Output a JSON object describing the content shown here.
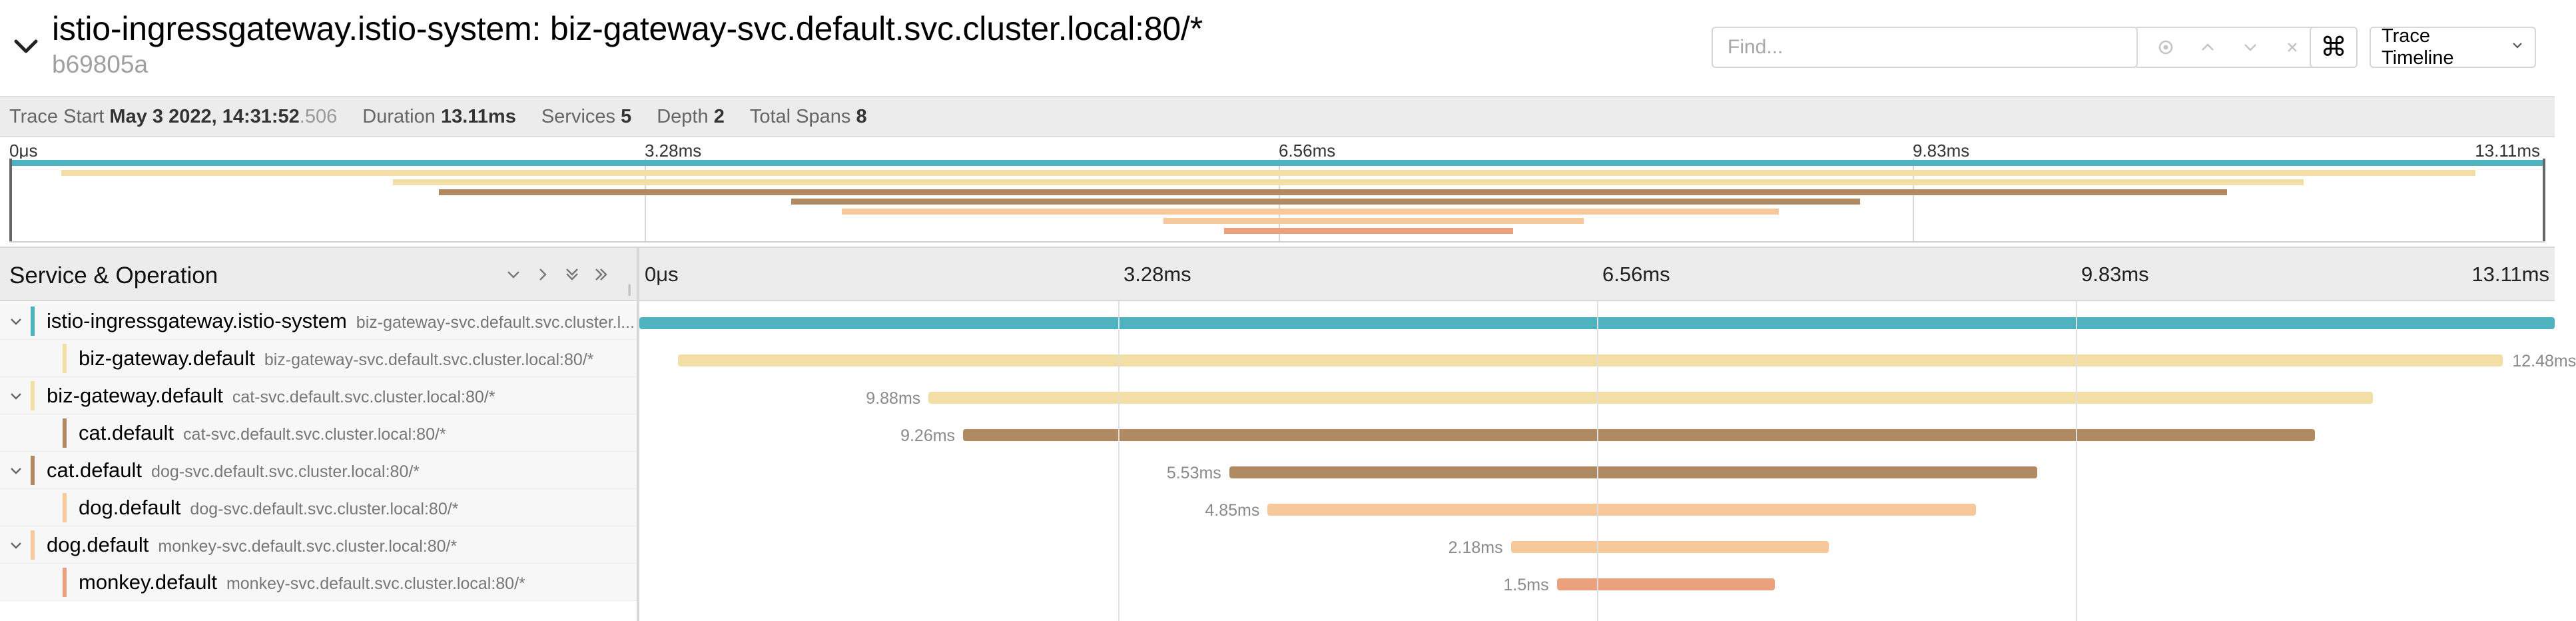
{
  "header": {
    "title": "istio-ingressgateway.istio-system: biz-gateway-svc.default.svc.cluster.local:80/*",
    "trace_id": "b69805a",
    "find_placeholder": "Find...",
    "view_label": "Trace Timeline",
    "kbd_glyph": "⌘"
  },
  "stats": {
    "trace_start_label": "Trace Start",
    "trace_start_value": "May 3 2022, 14:31:52",
    "trace_start_ms": ".506",
    "duration_label": "Duration",
    "duration_value": "13.11ms",
    "services_label": "Services",
    "services_value": "5",
    "depth_label": "Depth",
    "depth_value": "2",
    "total_spans_label": "Total Spans",
    "total_spans_value": "8"
  },
  "ticks": [
    "0μs",
    "3.28ms",
    "6.56ms",
    "9.83ms",
    "13.11ms"
  ],
  "colors": {
    "teal": "#4fb3bf",
    "light_yellow": "#f3dfa6",
    "light_orange": "#f7c99a",
    "brown": "#b08a62",
    "salmon": "#eba07e"
  },
  "timeline": {
    "column_title": "Service & Operation",
    "spans": [
      {
        "service": "istio-ingressgateway.istio-system",
        "operation": "biz-gateway-svc.default.svc.cluster.l...",
        "depth": 0,
        "toggle": true,
        "color": "#4fb3bf",
        "start": 0.0,
        "end": 1.0,
        "label": ""
      },
      {
        "service": "biz-gateway.default",
        "operation": "biz-gateway-svc.default.svc.cluster.local:80/*",
        "depth": 1,
        "toggle": false,
        "color": "#f3dfa6",
        "start": 0.02,
        "end": 0.973,
        "label": "12.48ms"
      },
      {
        "service": "biz-gateway.default",
        "operation": "cat-svc.default.svc.cluster.local:80/*",
        "depth": 0,
        "toggle": true,
        "color": "#f3dfa6",
        "start": 0.151,
        "end": 0.905,
        "label": "9.88ms"
      },
      {
        "service": "cat.default",
        "operation": "cat-svc.default.svc.cluster.local:80/*",
        "depth": 1,
        "toggle": false,
        "color": "#b08a62",
        "start": 0.169,
        "end": 0.875,
        "label": "9.26ms"
      },
      {
        "service": "cat.default",
        "operation": "dog-svc.default.svc.cluster.local:80/*",
        "depth": 0,
        "toggle": true,
        "color": "#b08a62",
        "start": 0.308,
        "end": 0.73,
        "label": "5.53ms"
      },
      {
        "service": "dog.default",
        "operation": "dog-svc.default.svc.cluster.local:80/*",
        "depth": 1,
        "toggle": false,
        "color": "#f7c99a",
        "start": 0.328,
        "end": 0.698,
        "label": "4.85ms"
      },
      {
        "service": "dog.default",
        "operation": "monkey-svc.default.svc.cluster.local:80/*",
        "depth": 0,
        "toggle": true,
        "color": "#f7c99a",
        "start": 0.455,
        "end": 0.621,
        "label": "2.18ms"
      },
      {
        "service": "monkey.default",
        "operation": "monkey-svc.default.svc.cluster.local:80/*",
        "depth": 1,
        "toggle": false,
        "color": "#eba07e",
        "start": 0.479,
        "end": 0.593,
        "label": "1.5ms"
      }
    ]
  }
}
